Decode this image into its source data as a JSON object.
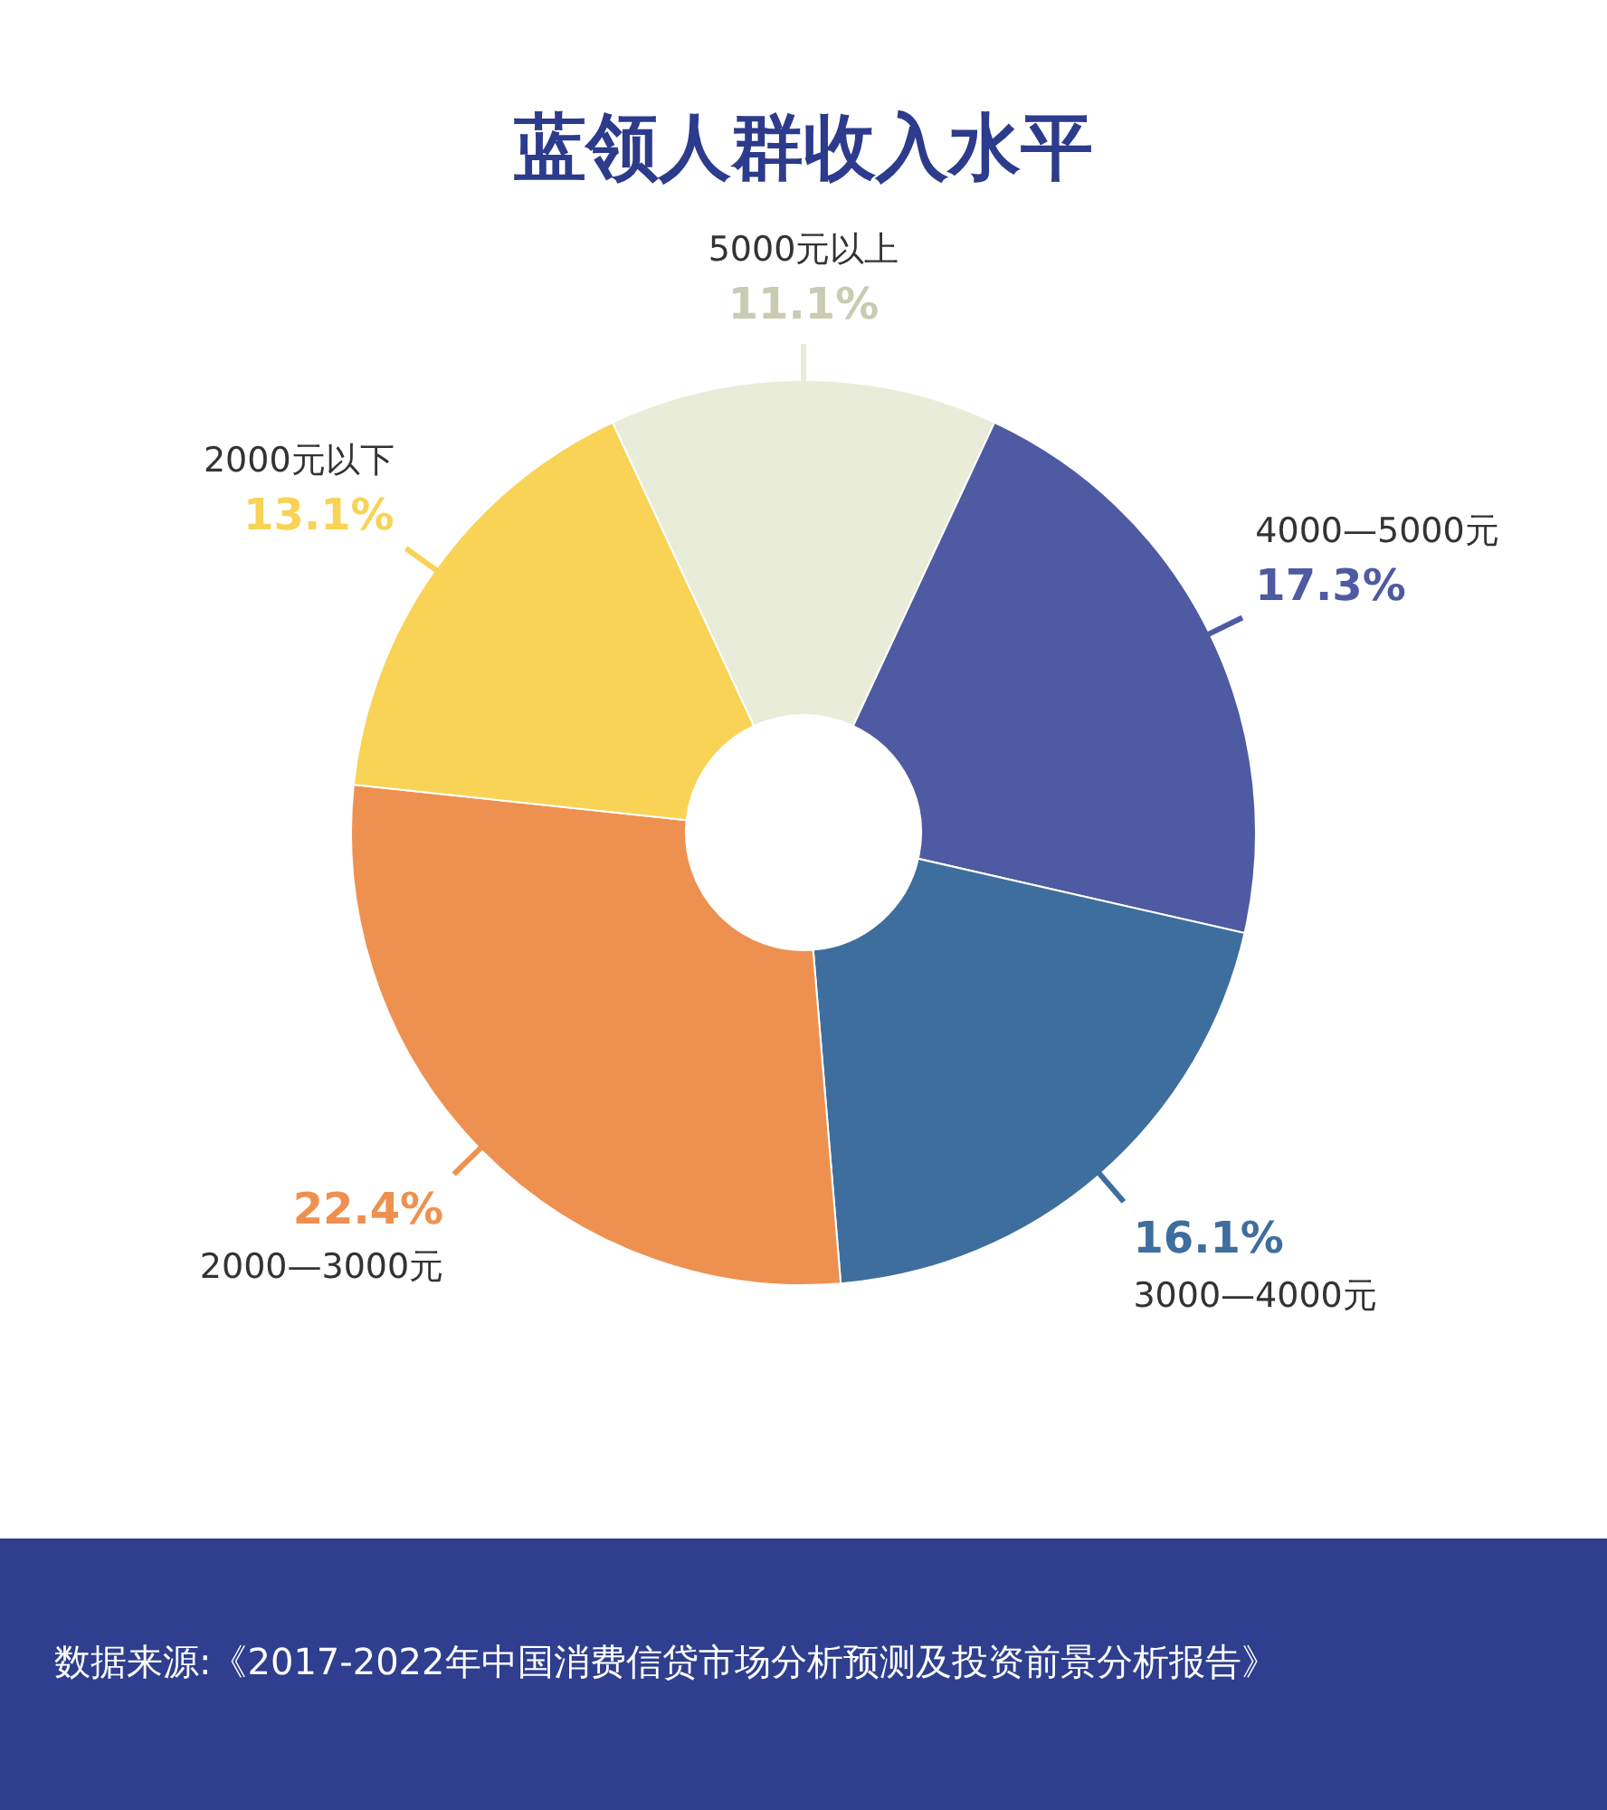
{
  "chart_data": {
    "type": "donut",
    "title": "蓝领人群收入水平",
    "categories": [
      "5000元以上",
      "4000—5000元",
      "3000—4000元",
      "2000—3000元",
      "2000元以下"
    ],
    "values": [
      11.1,
      17.3,
      16.1,
      22.4,
      13.1
    ],
    "value_labels": [
      "11.1%",
      "17.3%",
      "16.1%",
      "22.4%",
      "13.1%"
    ],
    "colors": [
      "#e9ecd8",
      "#4e5aa1",
      "#3e6e9d",
      "#ee9150",
      "#f8d355"
    ],
    "annotations": [
      "数据来源:《2017-2022年中国消费信贷市场分析预测及投资前景分析报告》"
    ]
  }
}
